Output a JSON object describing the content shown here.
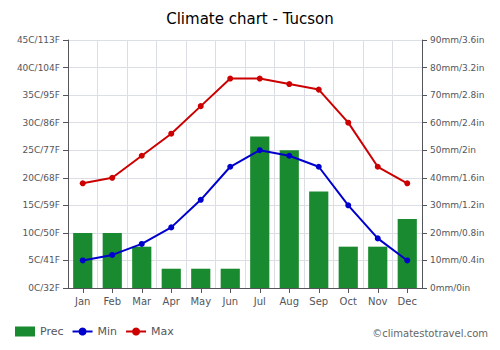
{
  "chart_data": {
    "type": "bar",
    "title": "Climate chart - Tucson",
    "categories": [
      "Jan",
      "Feb",
      "Mar",
      "Apr",
      "May",
      "Jun",
      "Jul",
      "Aug",
      "Sep",
      "Oct",
      "Nov",
      "Dec"
    ],
    "series": [
      {
        "name": "Prec",
        "type": "bar",
        "axis": "y2",
        "color": "#1a8a30",
        "values": [
          20,
          20,
          15,
          7,
          7,
          7,
          55,
          50,
          35,
          15,
          15,
          25
        ]
      },
      {
        "name": "Min",
        "type": "line",
        "color": "#0000cc",
        "marker": "circle",
        "values": [
          5,
          6,
          8,
          11,
          16,
          22,
          25,
          24,
          22,
          15,
          9,
          5
        ]
      },
      {
        "name": "Max",
        "type": "line",
        "color": "#cc0000",
        "marker": "circle",
        "values": [
          19,
          20,
          24,
          28,
          33,
          38,
          38,
          37,
          36,
          30,
          22,
          19
        ]
      }
    ],
    "ylim": [
      0,
      45
    ],
    "yticks": [
      {
        "value": 0,
        "label": "0C/32F"
      },
      {
        "value": 5,
        "label": "5C/41F"
      },
      {
        "value": 10,
        "label": "10C/50F"
      },
      {
        "value": 15,
        "label": "15C/59F"
      },
      {
        "value": 20,
        "label": "20C/68F"
      },
      {
        "value": 25,
        "label": "25C/77F"
      },
      {
        "value": 30,
        "label": "30C/86F"
      },
      {
        "value": 35,
        "label": "35C/95F"
      },
      {
        "value": 40,
        "label": "40C/104F"
      },
      {
        "value": 45,
        "label": "45C/113F"
      }
    ],
    "y2lim": [
      0,
      90
    ],
    "y2ticks": [
      {
        "value": 0,
        "label": "0mm/0in"
      },
      {
        "value": 10,
        "label": "10mm/0.4in"
      },
      {
        "value": 20,
        "label": "20mm/0.8in"
      },
      {
        "value": 30,
        "label": "30mm/1.2in"
      },
      {
        "value": 40,
        "label": "40mm/1.6in"
      },
      {
        "value": 50,
        "label": "50mm/2in"
      },
      {
        "value": 60,
        "label": "60mm/2.4in"
      },
      {
        "value": 70,
        "label": "70mm/2.8in"
      },
      {
        "value": 80,
        "label": "80mm/3.2in"
      },
      {
        "value": 90,
        "label": "90mm/3.6in"
      }
    ],
    "grid": true,
    "legend": "lower left",
    "annotations": [
      "©climatestotravel.com"
    ]
  }
}
